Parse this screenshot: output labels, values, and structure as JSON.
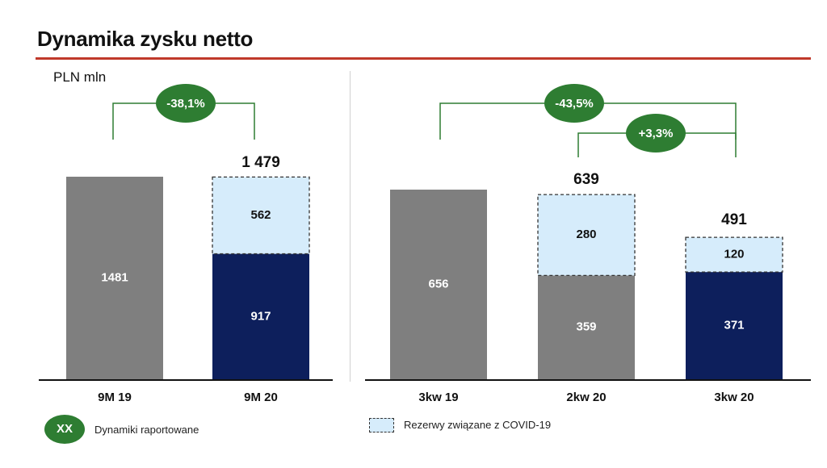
{
  "header": {
    "title": "Dynamika zysku netto",
    "unit": "PLN mln"
  },
  "colors": {
    "gray": "#7f7f7f",
    "navy": "#0d1f5c",
    "covid_fill": "#d6ecfb",
    "badge_green": "#2e7d32",
    "bracket_green": "#2e7d32",
    "title_rule": "#c0392b"
  },
  "legend": {
    "badge_label": "XX",
    "badge_text": "Dynamiki raportowane",
    "covid_text": "Rezerwy związane z COVID-19"
  },
  "chart_data": [
    {
      "type": "bar",
      "stacked": true,
      "categories": [
        "9M 19",
        "9M 20"
      ],
      "series": [
        {
          "values": [
            1481,
            917
          ],
          "colors": [
            "#7f7f7f",
            "#0d1f5c"
          ],
          "labels": [
            "1481",
            "917"
          ]
        },
        {
          "name": "Rezerwy związane z COVID-19",
          "values": [
            0,
            562
          ],
          "labels": [
            "",
            "562"
          ]
        }
      ],
      "totals": [
        "",
        "1 479"
      ],
      "ylim": [
        0,
        1800
      ],
      "dynamics": [
        {
          "from": "9M 19",
          "to": "9M 20",
          "label": "-38,1%"
        }
      ]
    },
    {
      "type": "bar",
      "stacked": true,
      "categories": [
        "3kw 19",
        "2kw 20",
        "3kw 20"
      ],
      "series": [
        {
          "values": [
            656,
            359,
            371
          ],
          "colors": [
            "#7f7f7f",
            "#7f7f7f",
            "#0d1f5c"
          ],
          "labels": [
            "656",
            "359",
            "371"
          ]
        },
        {
          "name": "Rezerwy związane z COVID-19",
          "values": [
            0,
            280,
            120
          ],
          "labels": [
            "",
            "280",
            "120"
          ]
        }
      ],
      "totals": [
        "",
        "639",
        "491"
      ],
      "ylim": [
        0,
        760
      ],
      "dynamics": [
        {
          "from": "3kw 19",
          "to": "3kw 20",
          "label": "-43,5%"
        },
        {
          "from": "2kw 20",
          "to": "3kw 20",
          "label": "+3,3%"
        }
      ]
    }
  ]
}
